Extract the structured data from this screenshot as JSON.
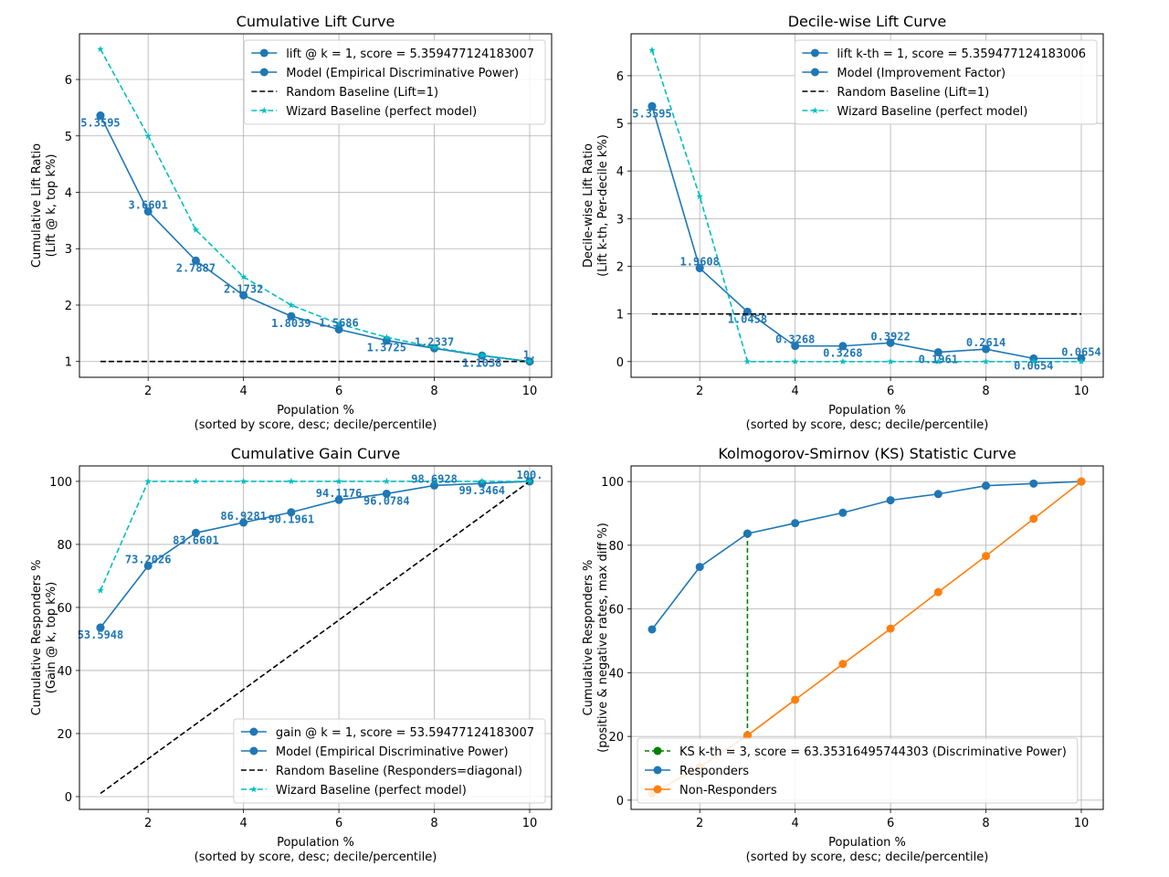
{
  "colors": {
    "model": "#1f77b4",
    "random": "#000000",
    "wizard": "#00bfbf",
    "ks": "#008000",
    "non_responders": "#ff7f0e",
    "grid": "#b0b0b0"
  },
  "chart_data": [
    {
      "type": "line",
      "title": "Cumulative Lift Curve",
      "xlabel": [
        "Population %",
        "(sorted by score, desc; decile/percentile)"
      ],
      "ylabel": [
        "Cumulative Lift Ratio",
        "(Lift @ k, top k%)"
      ],
      "xlim": [
        0.56,
        10.46
      ],
      "ylim": [
        0.72,
        6.81
      ],
      "xticks": [
        2,
        4,
        6,
        8,
        10
      ],
      "yticks": [
        1,
        2,
        3,
        4,
        5,
        6
      ],
      "grid": true,
      "legend": "upper-right",
      "series": [
        {
          "name": "lift @ k = 1, score = 5.359477124183007",
          "color": "#1f77b4",
          "dash": "",
          "marker": "circle",
          "x": [
            1
          ],
          "values": [
            5.3595
          ]
        },
        {
          "name": "Model (Empirical Discriminative Power)",
          "color": "#1f77b4",
          "dash": "",
          "marker": "circle",
          "x": [
            1,
            2,
            3,
            4,
            5,
            6,
            7,
            8,
            9,
            10
          ],
          "values": [
            5.3595,
            3.6601,
            2.7887,
            2.1732,
            1.8039,
            1.5686,
            1.3725,
            1.2337,
            1.1038,
            1.0
          ],
          "labels": [
            "5.3595",
            "3.6601",
            "2.7887",
            "2.1732",
            "1.8039",
            "1.5686",
            "1.3725",
            "1.2337",
            "1.1038",
            "1."
          ]
        },
        {
          "name": "Random Baseline (Lift=1)",
          "color": "#000000",
          "dash": "6,3",
          "marker": "none",
          "x": [
            1,
            2,
            3,
            4,
            5,
            6,
            7,
            8,
            9,
            10
          ],
          "values": [
            1,
            1,
            1,
            1,
            1,
            1,
            1,
            1,
            1,
            1
          ]
        },
        {
          "name": "Wizard Baseline (perfect model)",
          "color": "#00bfbf",
          "dash": "6,3",
          "marker": "star",
          "x": [
            1,
            2,
            3,
            4,
            5,
            6,
            7,
            8,
            9,
            10
          ],
          "values": [
            6.536,
            5.0,
            3.333,
            2.5,
            2.0,
            1.667,
            1.429,
            1.25,
            1.111,
            1.0
          ]
        }
      ]
    },
    {
      "type": "line",
      "title": "Decile-wise Lift Curve",
      "xlabel": [
        "Population %",
        "(sorted by score, desc; decile/percentile)"
      ],
      "ylabel": [
        "Decile-wise Lift Ratio",
        "(Lift k-th, Per-decile k%)"
      ],
      "xlim": [
        0.56,
        10.46
      ],
      "ylim": [
        -0.33,
        6.88
      ],
      "xticks": [
        2,
        4,
        6,
        8,
        10
      ],
      "yticks": [
        0,
        1,
        2,
        3,
        4,
        5,
        6
      ],
      "grid": true,
      "legend": "upper-right",
      "series": [
        {
          "name": "lift k-th = 1, score = 5.359477124183006",
          "color": "#1f77b4",
          "dash": "",
          "marker": "circle",
          "x": [
            1
          ],
          "values": [
            5.3595
          ]
        },
        {
          "name": "Model (Improvement Factor)",
          "color": "#1f77b4",
          "dash": "",
          "marker": "circle",
          "x": [
            1,
            2,
            3,
            4,
            5,
            6,
            7,
            8,
            9,
            10
          ],
          "values": [
            5.3595,
            1.9608,
            1.0458,
            0.3268,
            0.3268,
            0.3922,
            0.1961,
            0.2614,
            0.0654,
            0.0654
          ],
          "labels": [
            "5.3595",
            "1.9608",
            "1.0458",
            "0.3268",
            "0.3268",
            "0.3922",
            "0.1961",
            "0.2614",
            "0.0654",
            "0.0654"
          ]
        },
        {
          "name": "Random Baseline (Lift=1)",
          "color": "#000000",
          "dash": "6,3",
          "marker": "none",
          "x": [
            1,
            2,
            3,
            4,
            5,
            6,
            7,
            8,
            9,
            10
          ],
          "values": [
            1,
            1,
            1,
            1,
            1,
            1,
            1,
            1,
            1,
            1
          ]
        },
        {
          "name": "Wizard Baseline (perfect model)",
          "color": "#00bfbf",
          "dash": "6,3",
          "marker": "star",
          "x": [
            1,
            2,
            3,
            4,
            5,
            6,
            7,
            8,
            9,
            10
          ],
          "values": [
            6.536,
            3.464,
            0,
            0,
            0,
            0,
            0,
            0,
            0,
            0
          ]
        }
      ]
    },
    {
      "type": "line",
      "title": "Cumulative Gain Curve",
      "xlabel": [
        "Population %",
        "(sorted by score, desc; decile/percentile)"
      ],
      "ylabel": [
        "Cumulative Responders %",
        "(Gain @ k, top k%)"
      ],
      "xlim": [
        0.56,
        10.46
      ],
      "ylim": [
        -4.06,
        104.9
      ],
      "xticks": [
        2,
        4,
        6,
        8,
        10
      ],
      "yticks": [
        0,
        20,
        40,
        60,
        80,
        100
      ],
      "grid": true,
      "legend": "lower-right",
      "series": [
        {
          "name": "gain @ k = 1, score = 53.59477124183007",
          "color": "#1f77b4",
          "dash": "",
          "marker": "circle",
          "x": [
            1
          ],
          "values": [
            53.5948
          ]
        },
        {
          "name": "Model (Empirical Discriminative Power)",
          "color": "#1f77b4",
          "dash": "",
          "marker": "circle",
          "x": [
            1,
            2,
            3,
            4,
            5,
            6,
            7,
            8,
            9,
            10
          ],
          "values": [
            53.5948,
            73.2026,
            83.6601,
            86.9281,
            90.1961,
            94.1176,
            96.0784,
            98.6928,
            99.3464,
            100.0
          ],
          "labels": [
            "53.5948",
            "73.2026",
            "83.6601",
            "86.9281",
            "90.1961",
            "94.1176",
            "96.0784",
            "98.6928",
            "99.3464",
            "100."
          ]
        },
        {
          "name": "Random Baseline (Responders=diagonal)",
          "color": "#000000",
          "dash": "6,3",
          "marker": "none",
          "x": [
            1,
            2,
            3,
            4,
            5,
            6,
            7,
            8,
            9,
            10
          ],
          "values": [
            1,
            12,
            23,
            34,
            45,
            56,
            67,
            78,
            89,
            100
          ]
        },
        {
          "name": "Wizard Baseline (perfect model)",
          "color": "#00bfbf",
          "dash": "6,3",
          "marker": "star",
          "x": [
            1,
            2,
            3,
            4,
            5,
            6,
            7,
            8,
            9,
            10
          ],
          "values": [
            65.36,
            100,
            100,
            100,
            100,
            100,
            100,
            100,
            100,
            100
          ]
        }
      ]
    },
    {
      "type": "line",
      "title": "Kolmogorov-Smirnov (KS) Statistic Curve",
      "xlabel": [
        "Population %",
        "(sorted by score, desc; decile/percentile)"
      ],
      "ylabel": [
        "Cumulative Responders %",
        "(positive & negative rates, max diff %)"
      ],
      "xlim": [
        0.56,
        10.46
      ],
      "ylim": [
        -2.9,
        104.9
      ],
      "xticks": [
        2,
        4,
        6,
        8,
        10
      ],
      "yticks": [
        0,
        20,
        40,
        60,
        80,
        100
      ],
      "grid": true,
      "legend": "lower-left",
      "series": [
        {
          "name": "KS k-th = 3, score = 63.35316495744303 (Discriminative Power)",
          "color": "#008000",
          "dash": "5,3",
          "marker": "circle",
          "x": [
            3,
            3
          ],
          "values": [
            20.31,
            83.66
          ]
        },
        {
          "name": "Responders",
          "color": "#1f77b4",
          "dash": "",
          "marker": "circle",
          "x": [
            1,
            2,
            3,
            4,
            5,
            6,
            7,
            8,
            9,
            10
          ],
          "values": [
            53.59,
            73.2,
            83.66,
            86.93,
            90.2,
            94.12,
            96.08,
            98.69,
            99.35,
            100.0
          ]
        },
        {
          "name": "Non-Responders",
          "color": "#ff7f0e",
          "dash": "",
          "marker": "circle",
          "x": [
            1,
            2,
            3,
            4,
            5,
            6,
            7,
            8,
            9,
            10
          ],
          "values": [
            2.13,
            10.39,
            20.31,
            31.52,
            42.74,
            53.84,
            65.29,
            76.62,
            88.31,
            100.0
          ]
        }
      ]
    }
  ]
}
